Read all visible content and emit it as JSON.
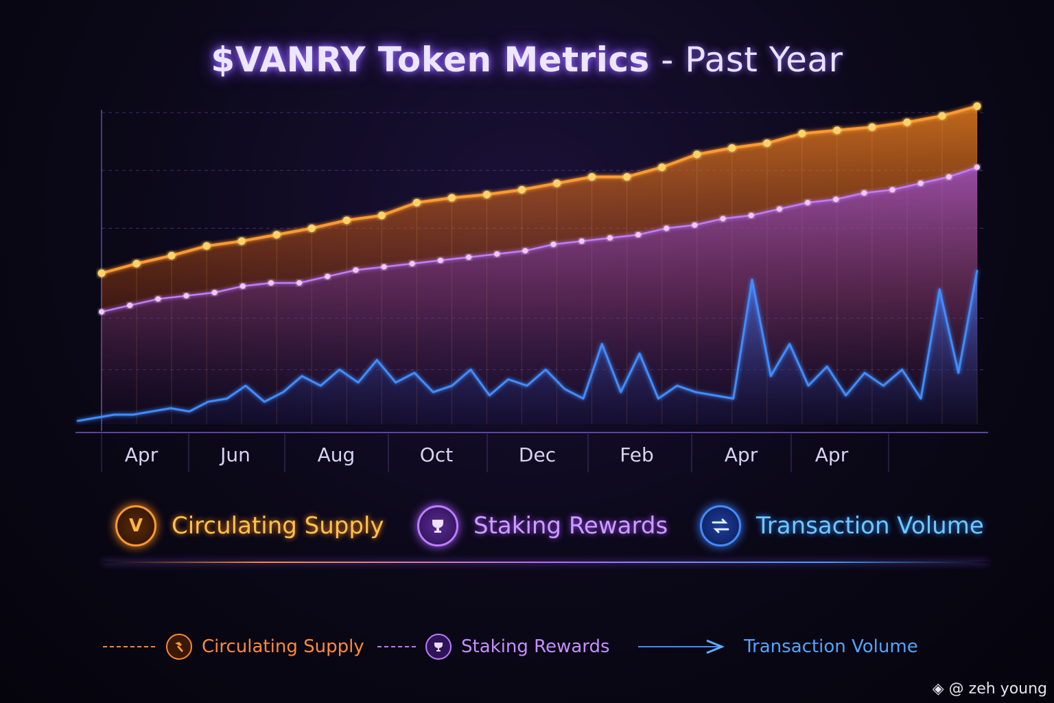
{
  "title": {
    "main": "$VANRY Token Metrics",
    "sub": "- Past Year"
  },
  "colors": {
    "supply": "#ff9a2e",
    "staking": "#c07bff",
    "volume": "#3f8dff",
    "grid": "#7a58d8"
  },
  "chart_data": {
    "type": "line",
    "x_tick_labels": [
      "Apr",
      "Jun",
      "Aug",
      "Oct",
      "Dec",
      "Feb",
      "Apr",
      "Apr"
    ],
    "ylim": [
      0,
      100
    ],
    "grid": true,
    "legend_placement": "bottom",
    "series": [
      {
        "name": "Circulating Supply",
        "color": "#ff9a2e",
        "values": [
          47,
          50,
          52.5,
          55.5,
          57,
          59,
          61,
          63.5,
          65,
          69,
          70.5,
          71.5,
          73,
          75,
          77,
          77,
          80,
          84,
          86,
          87.5,
          90.5,
          91.5,
          92.5,
          94,
          96,
          99
        ]
      },
      {
        "name": "Staking Rewards",
        "color": "#c07bff",
        "values": [
          35,
          37,
          39,
          40,
          41,
          43,
          44,
          44,
          46,
          48,
          49,
          50,
          51,
          52,
          53,
          54,
          56,
          57,
          58,
          59,
          61,
          62,
          64,
          65,
          67,
          69,
          70,
          72,
          73,
          75,
          77,
          80
        ]
      },
      {
        "name": "Transaction Volume",
        "color": "#3f8dff",
        "values": [
          1,
          2,
          3,
          3,
          4,
          5,
          4,
          7,
          8,
          12,
          7,
          10,
          15,
          12,
          17,
          13,
          20,
          13,
          16,
          10,
          12,
          17,
          9,
          14,
          12,
          17,
          11,
          8,
          25,
          10,
          22,
          8,
          12,
          10,
          9,
          8,
          45,
          15,
          25,
          12,
          18,
          9,
          16,
          12,
          17,
          8,
          42,
          16,
          48
        ]
      }
    ]
  },
  "legend_primary": [
    {
      "label": "Circulating Supply",
      "icon": "v-logo-icon"
    },
    {
      "label": "Staking Rewards",
      "icon": "trophy-icon"
    },
    {
      "label": "Transaction Volume",
      "icon": "swap-arrows-icon"
    }
  ],
  "legend_secondary": [
    {
      "label": "Circulating Supply",
      "icon": "hammer-icon"
    },
    {
      "label": "Staking Rewards",
      "icon": "trophy-icon"
    },
    {
      "label": "Transaction Volume",
      "icon": "arrow-icon"
    }
  ],
  "watermark": "@ zeh young"
}
